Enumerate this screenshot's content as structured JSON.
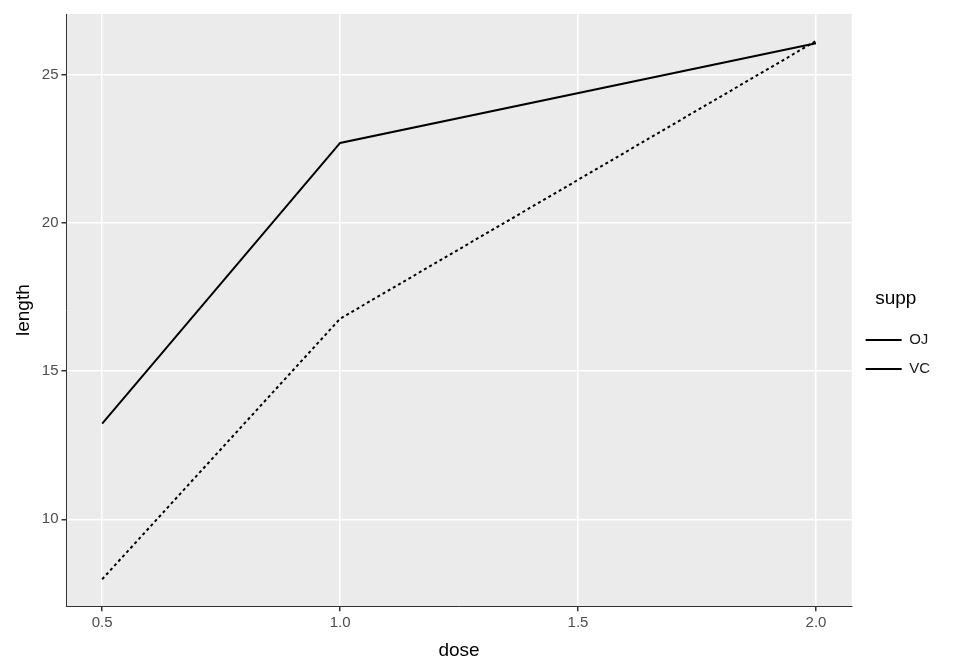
{
  "chart_data": {
    "type": "line",
    "x_label": "dose",
    "y_label": "length",
    "legend_title": "supp",
    "x": [
      0.5,
      1,
      2
    ],
    "series": [
      {
        "name": "OJ",
        "color": "#000000",
        "line_style": "solid",
        "values": [
          13.23,
          22.7,
          26.06
        ]
      },
      {
        "name": "VC",
        "color": "#000000",
        "line_style": "dotted",
        "values": [
          7.98,
          16.77,
          26.14
        ]
      }
    ],
    "xlim": [
      0.425,
      2.075
    ],
    "xticks": [
      {
        "value": 0.5,
        "label": "0.5"
      },
      {
        "value": 1,
        "label": "1.0"
      },
      {
        "value": 1.5,
        "label": "1.5"
      },
      {
        "value": 2,
        "label": "2.0"
      }
    ],
    "ylim": [
      7.07,
      27.05
    ],
    "yticks": [
      10,
      15,
      20,
      25
    ],
    "grid": true,
    "legend": "right"
  }
}
